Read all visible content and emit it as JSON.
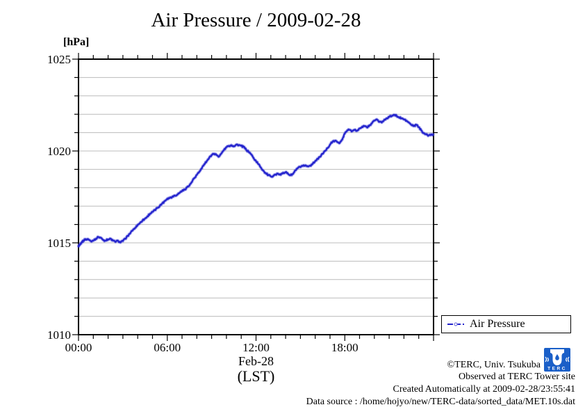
{
  "title": "Air Pressure / 2009-02-28",
  "y_unit_label": "[hPa]",
  "x_axis": {
    "date_label": "Feb-28",
    "timezone_label": "(LST)"
  },
  "legend": {
    "label": "Air Pressure"
  },
  "footer": {
    "copyright": "©TERC, Univ. Tsukuba",
    "observed": "Observed at TERC Tower site",
    "created": "Created Automatically at 2009-02-28/23:55:41",
    "data_source": "Data source : /home/hojyo/new/TERC-data/sorted_data/MET.10s.dat",
    "logo_text": "TERC"
  },
  "colors": {
    "line": "#2323cc",
    "line_halo": "rgba(80,80,220,0.30)",
    "marker": "rgba(90,90,225,0.35)",
    "grid": "#bcbcbc",
    "axis": "#000000",
    "logo_blue": "#1a5fc8"
  },
  "chart_data": {
    "type": "line",
    "title": "Air Pressure / 2009-02-28",
    "xlabel": "Feb-28 (LST)",
    "ylabel": "[hPa]",
    "xlim_hours": [
      0,
      24
    ],
    "ylim": [
      1010,
      1025
    ],
    "x_minor_tick_hours": 1,
    "x_major_tick_hours": 6,
    "y_minor_tick": 1,
    "y_major_tick": 5,
    "grid": "horizontal gridlines every 1 hPa",
    "legend_position": "outside lower right",
    "x_tick_labels": [
      {
        "hour": 0,
        "label": "00:00"
      },
      {
        "hour": 6,
        "label": "06:00"
      },
      {
        "hour": 12,
        "label": "12:00"
      },
      {
        "hour": 18,
        "label": "18:00"
      }
    ],
    "y_tick_labels": [
      {
        "value": 1010,
        "label": "1010"
      },
      {
        "value": 1015,
        "label": "1015"
      },
      {
        "value": 1020,
        "label": "1020"
      },
      {
        "value": 1025,
        "label": "1025"
      }
    ],
    "series": [
      {
        "name": "Air Pressure",
        "color": "#2323cc",
        "points": [
          [
            0.0,
            1014.82
          ],
          [
            0.08,
            1014.88
          ],
          [
            0.17,
            1014.95
          ],
          [
            0.25,
            1015.05
          ],
          [
            0.33,
            1015.12
          ],
          [
            0.5,
            1015.2
          ],
          [
            0.67,
            1015.18
          ],
          [
            0.83,
            1015.1
          ],
          [
            1.0,
            1015.12
          ],
          [
            1.17,
            1015.22
          ],
          [
            1.33,
            1015.32
          ],
          [
            1.5,
            1015.28
          ],
          [
            1.67,
            1015.15
          ],
          [
            1.83,
            1015.12
          ],
          [
            2.0,
            1015.18
          ],
          [
            2.17,
            1015.22
          ],
          [
            2.33,
            1015.12
          ],
          [
            2.5,
            1015.05
          ],
          [
            2.67,
            1015.12
          ],
          [
            2.83,
            1015.02
          ],
          [
            3.0,
            1015.1
          ],
          [
            3.17,
            1015.22
          ],
          [
            3.33,
            1015.38
          ],
          [
            3.5,
            1015.52
          ],
          [
            3.67,
            1015.68
          ],
          [
            3.83,
            1015.82
          ],
          [
            4.0,
            1015.98
          ],
          [
            4.17,
            1016.1
          ],
          [
            4.33,
            1016.22
          ],
          [
            4.5,
            1016.32
          ],
          [
            4.67,
            1016.45
          ],
          [
            4.83,
            1016.58
          ],
          [
            5.0,
            1016.68
          ],
          [
            5.17,
            1016.78
          ],
          [
            5.33,
            1016.9
          ],
          [
            5.5,
            1017.02
          ],
          [
            5.67,
            1017.15
          ],
          [
            5.83,
            1017.28
          ],
          [
            6.0,
            1017.4
          ],
          [
            6.17,
            1017.45
          ],
          [
            6.33,
            1017.5
          ],
          [
            6.5,
            1017.58
          ],
          [
            6.67,
            1017.62
          ],
          [
            6.83,
            1017.72
          ],
          [
            7.0,
            1017.82
          ],
          [
            7.17,
            1017.9
          ],
          [
            7.33,
            1018.02
          ],
          [
            7.5,
            1018.12
          ],
          [
            7.67,
            1018.32
          ],
          [
            7.83,
            1018.52
          ],
          [
            8.0,
            1018.7
          ],
          [
            8.17,
            1018.88
          ],
          [
            8.33,
            1019.05
          ],
          [
            8.5,
            1019.28
          ],
          [
            8.67,
            1019.45
          ],
          [
            8.83,
            1019.62
          ],
          [
            9.0,
            1019.78
          ],
          [
            9.17,
            1019.85
          ],
          [
            9.33,
            1019.78
          ],
          [
            9.5,
            1019.7
          ],
          [
            9.67,
            1019.88
          ],
          [
            9.83,
            1020.05
          ],
          [
            10.0,
            1020.2
          ],
          [
            10.17,
            1020.28
          ],
          [
            10.33,
            1020.32
          ],
          [
            10.5,
            1020.26
          ],
          [
            10.67,
            1020.35
          ],
          [
            10.83,
            1020.32
          ],
          [
            11.0,
            1020.28
          ],
          [
            11.17,
            1020.22
          ],
          [
            11.33,
            1020.08
          ],
          [
            11.5,
            1019.95
          ],
          [
            11.67,
            1019.82
          ],
          [
            11.83,
            1019.62
          ],
          [
            12.0,
            1019.45
          ],
          [
            12.17,
            1019.28
          ],
          [
            12.33,
            1019.1
          ],
          [
            12.5,
            1018.92
          ],
          [
            12.67,
            1018.78
          ],
          [
            12.83,
            1018.68
          ],
          [
            13.0,
            1018.62
          ],
          [
            13.17,
            1018.65
          ],
          [
            13.33,
            1018.72
          ],
          [
            13.5,
            1018.76
          ],
          [
            13.67,
            1018.7
          ],
          [
            13.83,
            1018.82
          ],
          [
            14.0,
            1018.85
          ],
          [
            14.17,
            1018.75
          ],
          [
            14.33,
            1018.68
          ],
          [
            14.5,
            1018.75
          ],
          [
            14.67,
            1018.95
          ],
          [
            14.83,
            1019.08
          ],
          [
            15.0,
            1019.12
          ],
          [
            15.17,
            1019.18
          ],
          [
            15.33,
            1019.22
          ],
          [
            15.5,
            1019.16
          ],
          [
            15.67,
            1019.2
          ],
          [
            15.83,
            1019.3
          ],
          [
            16.0,
            1019.45
          ],
          [
            16.17,
            1019.58
          ],
          [
            16.33,
            1019.68
          ],
          [
            16.5,
            1019.85
          ],
          [
            16.67,
            1020.0
          ],
          [
            16.83,
            1020.15
          ],
          [
            17.0,
            1020.35
          ],
          [
            17.17,
            1020.5
          ],
          [
            17.33,
            1020.55
          ],
          [
            17.5,
            1020.48
          ],
          [
            17.67,
            1020.45
          ],
          [
            17.83,
            1020.62
          ],
          [
            18.0,
            1020.95
          ],
          [
            18.17,
            1021.12
          ],
          [
            18.33,
            1021.15
          ],
          [
            18.5,
            1021.08
          ],
          [
            18.67,
            1021.15
          ],
          [
            18.83,
            1021.1
          ],
          [
            19.0,
            1021.22
          ],
          [
            19.17,
            1021.32
          ],
          [
            19.33,
            1021.35
          ],
          [
            19.5,
            1021.28
          ],
          [
            19.67,
            1021.4
          ],
          [
            19.83,
            1021.5
          ],
          [
            20.0,
            1021.65
          ],
          [
            20.17,
            1021.72
          ],
          [
            20.33,
            1021.58
          ],
          [
            20.5,
            1021.55
          ],
          [
            20.67,
            1021.7
          ],
          [
            20.83,
            1021.78
          ],
          [
            21.0,
            1021.85
          ],
          [
            21.17,
            1021.9
          ],
          [
            21.33,
            1021.97
          ],
          [
            21.5,
            1021.92
          ],
          [
            21.67,
            1021.82
          ],
          [
            21.83,
            1021.78
          ],
          [
            22.0,
            1021.72
          ],
          [
            22.17,
            1021.65
          ],
          [
            22.33,
            1021.55
          ],
          [
            22.5,
            1021.42
          ],
          [
            22.67,
            1021.36
          ],
          [
            22.83,
            1021.42
          ],
          [
            23.0,
            1021.3
          ],
          [
            23.17,
            1021.12
          ],
          [
            23.33,
            1020.98
          ],
          [
            23.5,
            1020.9
          ],
          [
            23.67,
            1020.85
          ],
          [
            23.83,
            1020.88
          ],
          [
            23.97,
            1020.9
          ]
        ]
      }
    ]
  }
}
